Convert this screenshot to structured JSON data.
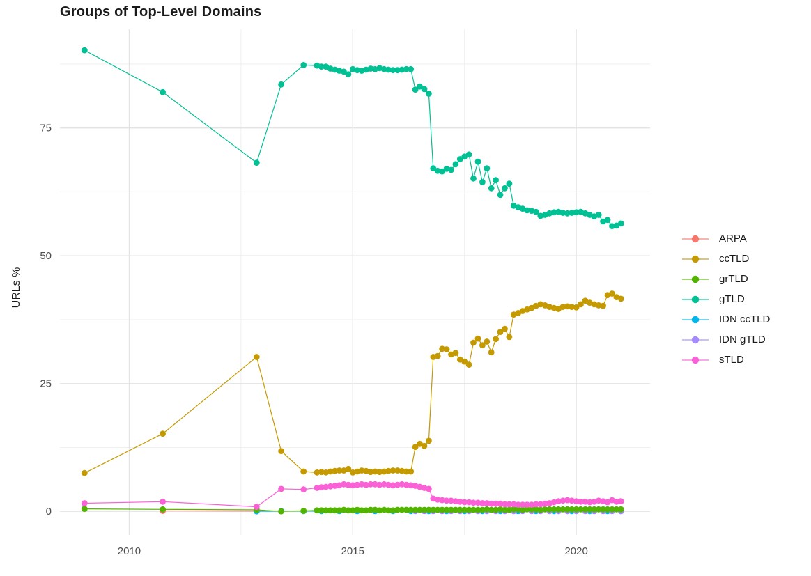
{
  "title": "Groups of Top-Level Domains",
  "legend": {
    "position": "right",
    "items": [
      {
        "label": "ARPA",
        "color": "#F8766D"
      },
      {
        "label": "ccTLD",
        "color": "#C49A00"
      },
      {
        "label": "grTLD",
        "color": "#53B400"
      },
      {
        "label": "gTLD",
        "color": "#00C094"
      },
      {
        "label": "IDN ccTLD",
        "color": "#00B6EB"
      },
      {
        "label": "IDN gTLD",
        "color": "#A58AFF"
      },
      {
        "label": "sTLD",
        "color": "#FB61D7"
      }
    ]
  },
  "colors": {
    "grid_major": "#E3E3E3",
    "grid_minor": "#EFEFEF",
    "tick_text": "#4d4d4d",
    "background": "#ffffff"
  },
  "chart_data": {
    "type": "line",
    "title": "Groups of Top-Level Domains",
    "xlabel": "",
    "ylabel": "URLs %",
    "xlim": [
      2008.45,
      2021.65
    ],
    "ylim": [
      -4.6,
      94.3
    ],
    "grid": true,
    "legend_position": "right",
    "x_ticks": {
      "major": [
        2010,
        2015,
        2020
      ],
      "major_labels": [
        "2010",
        "2015",
        "2020"
      ],
      "minor": [
        2012.5,
        2017.5
      ]
    },
    "y_ticks": {
      "major": [
        0,
        25,
        50,
        75
      ],
      "major_labels": [
        "0",
        "25",
        "50",
        "75"
      ],
      "minor": [
        12.5,
        37.5,
        62.5,
        87.5
      ]
    },
    "draw_order": [
      "ARPA",
      "IDN ccTLD",
      "IDN gTLD",
      "grTLD",
      "ccTLD",
      "gTLD",
      "sTLD"
    ],
    "series": [
      {
        "name": "ARPA",
        "color": "#F8766D",
        "x": [
          2010.75,
          2012.85,
          2013.4
        ],
        "y": [
          0.1,
          0.05,
          0.05
        ]
      },
      {
        "name": "ccTLD",
        "color": "#C49A00",
        "x": [
          2009.0,
          2010.75,
          2012.85,
          2013.4,
          2013.9,
          2014.2,
          2014.3,
          2014.4,
          2014.5,
          2014.6,
          2014.7,
          2014.8,
          2014.9,
          2015.0,
          2015.1,
          2015.2,
          2015.3,
          2015.4,
          2015.5,
          2015.6,
          2015.7,
          2015.8,
          2015.9,
          2016.0,
          2016.1,
          2016.2,
          2016.3,
          2016.4,
          2016.5,
          2016.6,
          2016.7,
          2016.8,
          2016.9,
          2017.0,
          2017.1,
          2017.2,
          2017.3,
          2017.4,
          2017.5,
          2017.6,
          2017.7,
          2017.8,
          2017.9,
          2018.0,
          2018.1,
          2018.2,
          2018.3,
          2018.4,
          2018.5,
          2018.6,
          2018.7,
          2018.8,
          2018.9,
          2019.0,
          2019.1,
          2019.2,
          2019.3,
          2019.4,
          2019.5,
          2019.6,
          2019.7,
          2019.8,
          2019.9,
          2020.0,
          2020.1,
          2020.2,
          2020.3,
          2020.4,
          2020.5,
          2020.6,
          2020.7,
          2020.8,
          2020.9,
          2021.0
        ],
        "y": [
          7.5,
          15.2,
          30.2,
          11.8,
          7.8,
          7.6,
          7.7,
          7.6,
          7.8,
          7.9,
          8.0,
          8.0,
          8.3,
          7.6,
          7.8,
          8.0,
          7.9,
          7.7,
          7.8,
          7.7,
          7.8,
          7.9,
          8.0,
          8.0,
          7.9,
          7.8,
          7.8,
          12.6,
          13.2,
          12.8,
          13.8,
          30.2,
          30.4,
          31.8,
          31.7,
          30.7,
          31.0,
          29.7,
          29.3,
          28.7,
          33.0,
          33.8,
          32.5,
          33.2,
          31.1,
          33.7,
          35.1,
          35.7,
          34.1,
          38.5,
          38.8,
          39.2,
          39.5,
          39.8,
          40.2,
          40.5,
          40.3,
          40.0,
          39.8,
          39.6,
          40.0,
          40.1,
          40.0,
          39.9,
          40.5,
          41.2,
          40.8,
          40.5,
          40.3,
          40.2,
          42.3,
          42.6,
          41.9,
          41.6
        ]
      },
      {
        "name": "grTLD",
        "color": "#53B400",
        "x": [
          2009.0,
          2010.75,
          2012.85,
          2013.4,
          2013.9,
          2014.2,
          2014.3,
          2014.4,
          2014.5,
          2014.6,
          2014.7,
          2014.8,
          2014.9,
          2015.0,
          2015.1,
          2015.2,
          2015.3,
          2015.4,
          2015.5,
          2015.6,
          2015.7,
          2015.8,
          2015.9,
          2016.0,
          2016.1,
          2016.2,
          2016.3,
          2016.4,
          2016.5,
          2016.6,
          2016.7,
          2016.8,
          2016.9,
          2017.0,
          2017.1,
          2017.2,
          2017.3,
          2017.4,
          2017.5,
          2017.6,
          2017.7,
          2017.8,
          2017.9,
          2018.0,
          2018.1,
          2018.2,
          2018.3,
          2018.4,
          2018.5,
          2018.6,
          2018.7,
          2018.8,
          2018.9,
          2019.0,
          2019.1,
          2019.2,
          2019.3,
          2019.4,
          2019.5,
          2019.6,
          2019.7,
          2019.8,
          2019.9,
          2020.0,
          2020.1,
          2020.2,
          2020.3,
          2020.4,
          2020.5,
          2020.6,
          2020.7,
          2020.8,
          2020.9,
          2021.0
        ],
        "y": [
          0.5,
          0.4,
          0.3,
          0.0,
          0.1,
          0.2,
          0.2,
          0.2,
          0.2,
          0.2,
          0.2,
          0.3,
          0.2,
          0.2,
          0.3,
          0.2,
          0.2,
          0.3,
          0.3,
          0.2,
          0.3,
          0.2,
          0.2,
          0.3,
          0.3,
          0.3,
          0.3,
          0.3,
          0.3,
          0.3,
          0.3,
          0.3,
          0.3,
          0.3,
          0.3,
          0.3,
          0.3,
          0.3,
          0.3,
          0.3,
          0.3,
          0.3,
          0.3,
          0.4,
          0.3,
          0.3,
          0.4,
          0.3,
          0.3,
          0.4,
          0.4,
          0.3,
          0.4,
          0.4,
          0.4,
          0.3,
          0.4,
          0.4,
          0.4,
          0.4,
          0.4,
          0.4,
          0.4,
          0.4,
          0.4,
          0.4,
          0.4,
          0.4,
          0.4,
          0.4,
          0.4,
          0.4,
          0.4,
          0.4
        ]
      },
      {
        "name": "gTLD",
        "color": "#00C094",
        "x": [
          2009.0,
          2010.75,
          2012.85,
          2013.4,
          2013.9,
          2014.2,
          2014.3,
          2014.4,
          2014.5,
          2014.6,
          2014.7,
          2014.8,
          2014.9,
          2015.0,
          2015.1,
          2015.2,
          2015.3,
          2015.4,
          2015.5,
          2015.6,
          2015.7,
          2015.8,
          2015.9,
          2016.0,
          2016.1,
          2016.2,
          2016.3,
          2016.4,
          2016.5,
          2016.6,
          2016.7,
          2016.8,
          2016.9,
          2017.0,
          2017.1,
          2017.2,
          2017.3,
          2017.4,
          2017.5,
          2017.6,
          2017.7,
          2017.8,
          2017.9,
          2018.0,
          2018.1,
          2018.2,
          2018.3,
          2018.4,
          2018.5,
          2018.6,
          2018.7,
          2018.8,
          2018.9,
          2019.0,
          2019.1,
          2019.2,
          2019.3,
          2019.4,
          2019.5,
          2019.6,
          2019.7,
          2019.8,
          2019.9,
          2020.0,
          2020.1,
          2020.2,
          2020.3,
          2020.4,
          2020.5,
          2020.6,
          2020.7,
          2020.8,
          2020.9,
          2021.0
        ],
        "y": [
          90.2,
          82.0,
          68.2,
          83.5,
          87.3,
          87.2,
          87.0,
          87.0,
          86.6,
          86.4,
          86.2,
          86.0,
          85.5,
          86.5,
          86.3,
          86.2,
          86.4,
          86.6,
          86.5,
          86.7,
          86.5,
          86.4,
          86.3,
          86.3,
          86.4,
          86.5,
          86.5,
          82.5,
          83.1,
          82.6,
          81.7,
          67.1,
          66.6,
          66.5,
          67.0,
          66.8,
          67.9,
          68.9,
          69.4,
          69.8,
          65.1,
          68.4,
          64.4,
          67.1,
          63.2,
          64.8,
          61.9,
          63.2,
          64.1,
          59.8,
          59.5,
          59.2,
          58.9,
          58.8,
          58.6,
          57.8,
          58.0,
          58.3,
          58.5,
          58.6,
          58.4,
          58.3,
          58.4,
          58.5,
          58.6,
          58.3,
          58.0,
          57.7,
          58.0,
          56.7,
          57.0,
          55.8,
          55.9,
          56.3
        ]
      },
      {
        "name": "IDN ccTLD",
        "color": "#00B6EB",
        "x": [
          2012.85,
          2013.4,
          2013.9,
          2014.3,
          2014.7,
          2015.1,
          2015.5,
          2015.9,
          2016.3,
          2016.7,
          2017.1,
          2017.5,
          2017.9,
          2018.3,
          2018.7,
          2019.1,
          2019.5,
          2019.9,
          2020.3,
          2020.7,
          2021.0
        ],
        "y": [
          0.0,
          0.05,
          0.05,
          0.05,
          0.05,
          0.05,
          0.05,
          0.05,
          0.05,
          0.05,
          0.05,
          0.05,
          0.05,
          0.05,
          0.05,
          0.05,
          0.05,
          0.05,
          0.05,
          0.05,
          0.05
        ]
      },
      {
        "name": "IDN gTLD",
        "color": "#A58AFF",
        "x": [
          2016.4,
          2016.6,
          2016.8,
          2017.0,
          2017.2,
          2017.4,
          2017.6,
          2017.8,
          2018.0,
          2018.2,
          2018.4,
          2018.6,
          2018.8,
          2019.0,
          2019.2,
          2019.4,
          2019.6,
          2019.8,
          2020.0,
          2020.2,
          2020.4,
          2020.6,
          2020.8,
          2021.0
        ],
        "y": [
          0.05,
          0.05,
          0.05,
          0.05,
          0.05,
          0.05,
          0.05,
          0.05,
          0.05,
          0.05,
          0.05,
          0.05,
          0.05,
          0.05,
          0.05,
          0.05,
          0.05,
          0.05,
          0.05,
          0.05,
          0.05,
          0.05,
          0.05,
          0.05
        ]
      },
      {
        "name": "sTLD",
        "color": "#FB61D7",
        "x": [
          2009.0,
          2010.75,
          2012.85,
          2013.4,
          2013.9,
          2014.2,
          2014.3,
          2014.4,
          2014.5,
          2014.6,
          2014.7,
          2014.8,
          2014.9,
          2015.0,
          2015.1,
          2015.2,
          2015.3,
          2015.4,
          2015.5,
          2015.6,
          2015.7,
          2015.8,
          2015.9,
          2016.0,
          2016.1,
          2016.2,
          2016.3,
          2016.4,
          2016.5,
          2016.6,
          2016.7,
          2016.8,
          2016.9,
          2017.0,
          2017.1,
          2017.2,
          2017.3,
          2017.4,
          2017.5,
          2017.6,
          2017.7,
          2017.8,
          2017.9,
          2018.0,
          2018.1,
          2018.2,
          2018.3,
          2018.4,
          2018.5,
          2018.6,
          2018.7,
          2018.8,
          2018.9,
          2019.0,
          2019.1,
          2019.2,
          2019.3,
          2019.4,
          2019.5,
          2019.6,
          2019.7,
          2019.8,
          2019.9,
          2020.0,
          2020.1,
          2020.2,
          2020.3,
          2020.4,
          2020.5,
          2020.6,
          2020.7,
          2020.8,
          2020.9,
          2021.0
        ],
        "y": [
          1.6,
          1.9,
          0.9,
          4.4,
          4.3,
          4.6,
          4.7,
          4.8,
          4.9,
          5.0,
          5.1,
          5.3,
          5.2,
          5.1,
          5.2,
          5.3,
          5.2,
          5.3,
          5.3,
          5.2,
          5.3,
          5.2,
          5.1,
          5.2,
          5.3,
          5.2,
          5.1,
          5.0,
          4.8,
          4.6,
          4.4,
          2.5,
          2.3,
          2.2,
          2.1,
          2.1,
          2.0,
          1.9,
          1.8,
          1.8,
          1.7,
          1.7,
          1.6,
          1.6,
          1.5,
          1.5,
          1.5,
          1.4,
          1.4,
          1.4,
          1.3,
          1.3,
          1.3,
          1.3,
          1.4,
          1.4,
          1.5,
          1.6,
          1.8,
          2.0,
          2.1,
          2.2,
          2.1,
          2.0,
          1.9,
          1.9,
          1.8,
          1.9,
          2.1,
          2.0,
          1.8,
          2.2,
          1.9,
          2.0
        ]
      }
    ]
  }
}
